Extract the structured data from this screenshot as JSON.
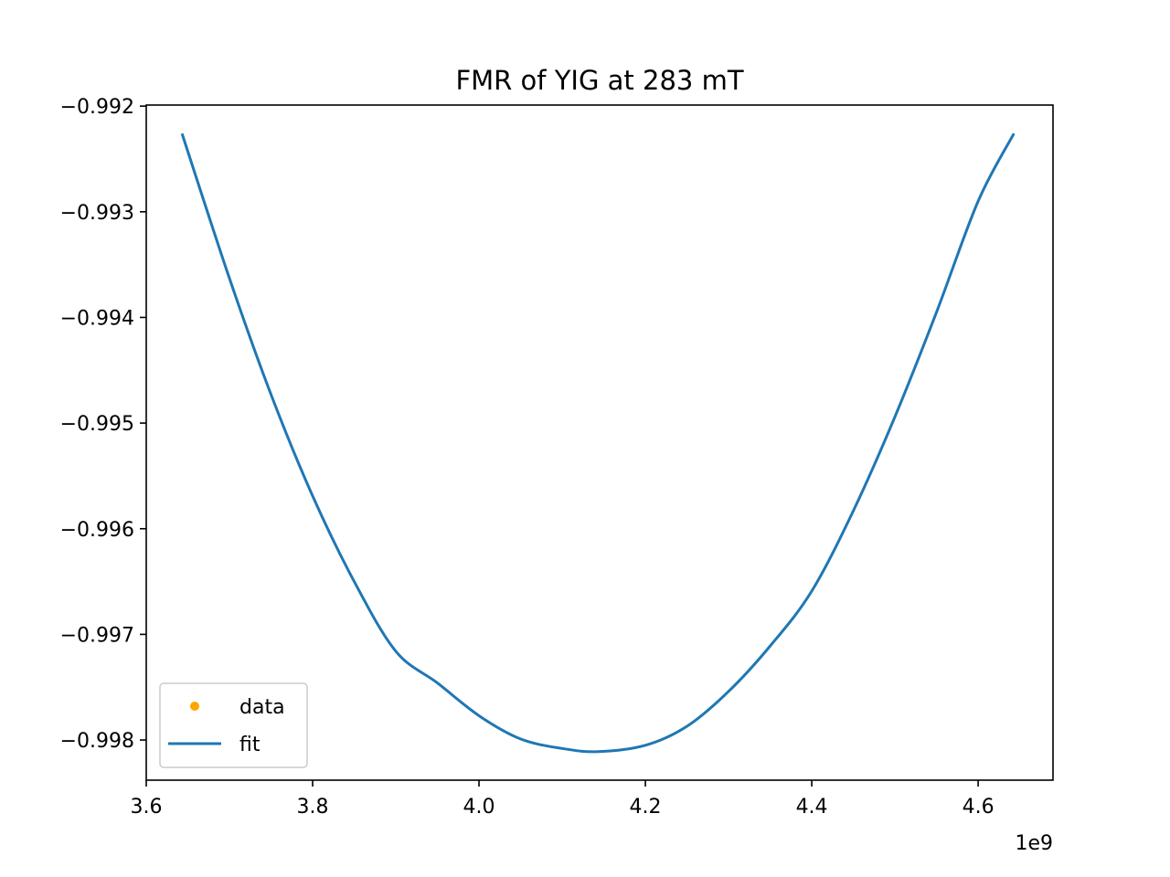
{
  "chart_data": {
    "type": "line",
    "title": "FMR of YIG at 283 mT",
    "xlabel": "",
    "ylabel": "",
    "x_offset_label": "1e9",
    "xlim": [
      3.6,
      4.69
    ],
    "ylim": [
      -0.99838,
      -0.99199
    ],
    "x_ticks": [
      3.6,
      3.8,
      4.0,
      4.2,
      4.4,
      4.6
    ],
    "x_tick_labels": [
      "3.6",
      "3.8",
      "4.0",
      "4.2",
      "4.4",
      "4.6"
    ],
    "y_ticks": [
      -0.992,
      -0.993,
      -0.994,
      -0.995,
      -0.996,
      -0.997,
      -0.998
    ],
    "y_tick_labels": [
      "−0.992",
      "−0.993",
      "−0.994",
      "−0.995",
      "−0.996",
      "−0.997",
      "−0.998"
    ],
    "grid": false,
    "legend_placement": "lower-left",
    "series": [
      {
        "name": "data",
        "style": "points",
        "color": "#ffa500",
        "x": [],
        "y": []
      },
      {
        "name": "fit",
        "style": "line",
        "color": "#1f77b4",
        "x": [
          3.643,
          3.7,
          3.75,
          3.8,
          3.85,
          3.9,
          3.95,
          4.0,
          4.05,
          4.1,
          4.143,
          4.2,
          4.25,
          4.3,
          4.35,
          4.4,
          4.45,
          4.5,
          4.55,
          4.6,
          4.643
        ],
        "y": [
          -0.99226,
          -0.99363,
          -0.99473,
          -0.99569,
          -0.9965,
          -0.99716,
          -0.99746,
          -0.99777,
          -0.99799,
          -0.99808,
          -0.99811,
          -0.99805,
          -0.99787,
          -0.99754,
          -0.99711,
          -0.99659,
          -0.99583,
          -0.99494,
          -0.99395,
          -0.9929,
          -0.99226
        ]
      }
    ]
  }
}
